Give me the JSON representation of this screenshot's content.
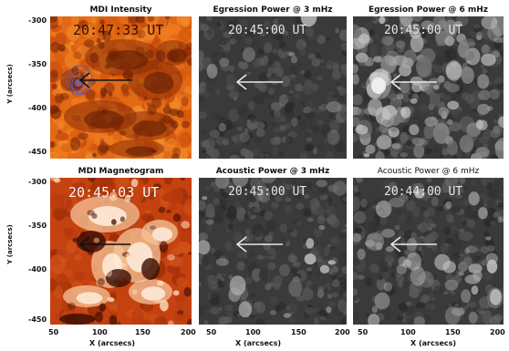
{
  "panels": [
    {
      "title": "MDI Intensity",
      "time": "20:47:33 UT",
      "kind": "intensity"
    },
    {
      "title": "Egression Power @ 3 mHz",
      "time": "20:45:00 UT",
      "kind": "egr3"
    },
    {
      "title": "Egression Power @ 6 mHz",
      "time": "20:45:00 UT",
      "kind": "egr6"
    },
    {
      "title": "MDI Magnetogram",
      "time": "20:45:03 UT",
      "kind": "magnetogram"
    },
    {
      "title": "Acoustic Power @ 3 mHz",
      "time": "20:45:00 UT",
      "kind": "ac3"
    },
    {
      "title": "Acoustic Power @ 6 mHz",
      "time": "20:44:00 UT",
      "kind": "ac6"
    }
  ],
  "y_axis": {
    "label": "Y (arcsecs)",
    "ticks": [
      "-300",
      "-350",
      "-400",
      "-450"
    ]
  },
  "x_axis": {
    "label": "X (arcsecs)",
    "ticks_left": [
      "50",
      "100",
      "150",
      "200"
    ],
    "ticks_mid": [
      "50",
      "100",
      "150",
      "200"
    ],
    "ticks_right": [
      "50",
      "100",
      "150",
      "200"
    ]
  },
  "colors": {
    "intensity_bg": "#e26a16",
    "magnetogram_bg": "#c4420f",
    "power_bg": "#3a3a3a",
    "arrow_white": "#e8e8e8",
    "arrow_black": "#111111",
    "contour": "#6a5aa8"
  }
}
